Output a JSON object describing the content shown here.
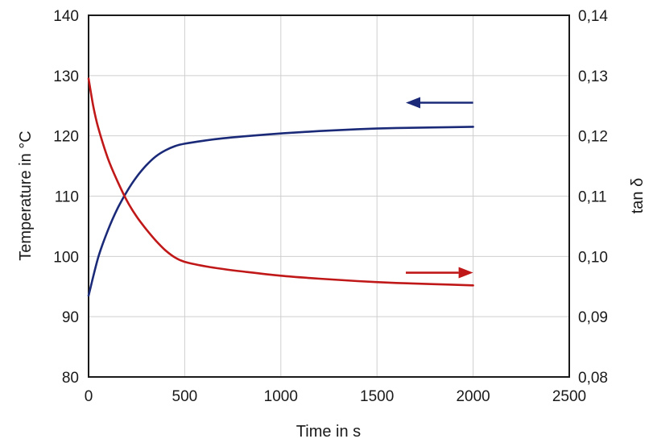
{
  "chart_data": {
    "type": "line",
    "xlabel": "Time in s",
    "ylabel_left": "Temperature in °C",
    "ylabel_right": "tan δ",
    "xlim": [
      0,
      2500
    ],
    "ylim_left": [
      80,
      140
    ],
    "ylim_right": [
      0.08,
      0.14
    ],
    "x_ticks": [
      "0",
      "500",
      "1000",
      "1500",
      "2000",
      "2500"
    ],
    "y_left_ticks": [
      "80",
      "90",
      "100",
      "110",
      "120",
      "130",
      "140"
    ],
    "y_right_ticks": [
      "0,08",
      "0,09",
      "0,10",
      "0,11",
      "0,12",
      "0,13",
      "0,14"
    ],
    "grid": true,
    "series": [
      {
        "axis": "left",
        "color": "#1a2a78",
        "x": [
          0,
          50,
          100,
          150,
          200,
          250,
          300,
          350,
          400,
          450,
          500,
          600,
          700,
          800,
          1000,
          1200,
          1400,
          1600,
          1800,
          2000
        ],
        "y": [
          93.5,
          99.8,
          104.3,
          107.9,
          110.8,
          113.2,
          115.1,
          116.6,
          117.6,
          118.3,
          118.7,
          119.2,
          119.6,
          119.9,
          120.4,
          120.8,
          121.1,
          121.3,
          121.4,
          121.5
        ]
      },
      {
        "axis": "right",
        "color": "#c01818",
        "x": [
          0,
          25,
          50,
          100,
          150,
          200,
          250,
          300,
          350,
          400,
          450,
          500,
          600,
          700,
          800,
          1000,
          1200,
          1400,
          1600,
          1800,
          2000
        ],
        "y": [
          0.1295,
          0.1248,
          0.1214,
          0.1163,
          0.1125,
          0.1092,
          0.1066,
          0.1045,
          0.1026,
          0.101,
          0.0998,
          0.0991,
          0.0984,
          0.0979,
          0.0975,
          0.0968,
          0.0963,
          0.0959,
          0.0956,
          0.0954,
          0.0952
        ]
      }
    ],
    "annotations": [
      {
        "type": "arrow",
        "direction": "left",
        "axis": "left",
        "color": "#1a2a78",
        "x_from": 2000,
        "x_to": 1650,
        "y": 125.5
      },
      {
        "type": "arrow",
        "direction": "right",
        "axis": "right",
        "color": "#c01818",
        "x_from": 1650,
        "x_to": 2000,
        "y": 0.0973
      }
    ]
  }
}
